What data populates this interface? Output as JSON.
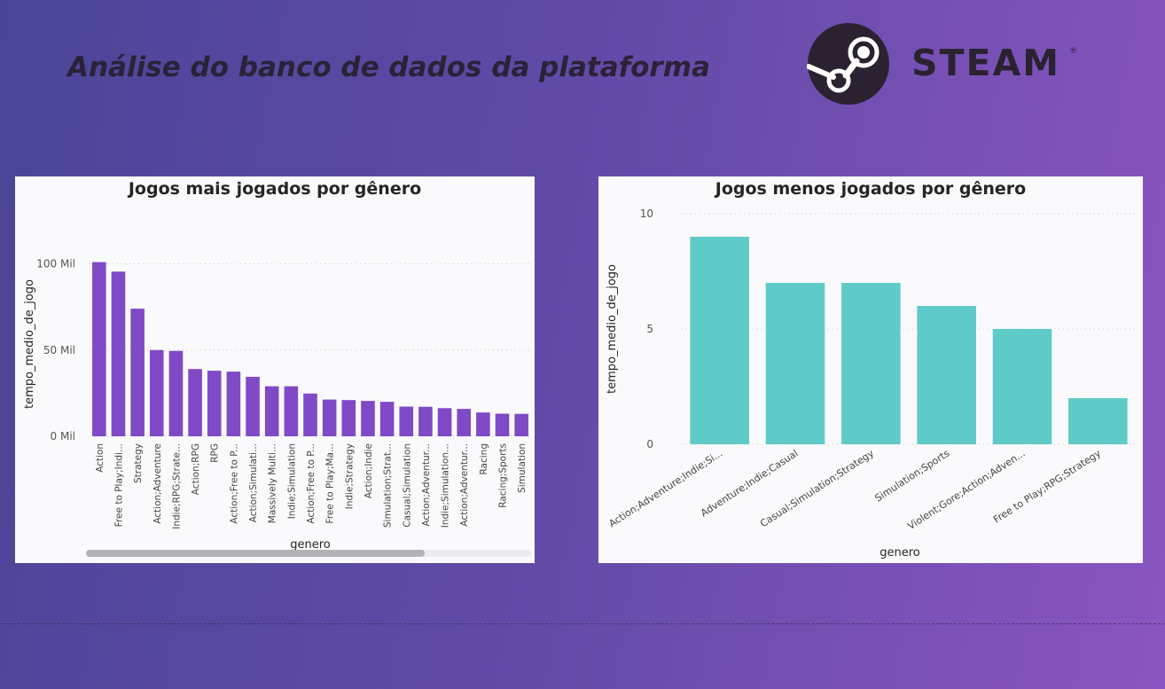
{
  "header": {
    "title": "Análise do banco de dados da plataforma",
    "logo_text": "STEAM",
    "logo_reg": "®",
    "logo_icon": "steam-logo-icon"
  },
  "colors": {
    "left_bar": "#8049c6",
    "right_bar": "#5ecbc8",
    "panel_bg": "#faf9fc",
    "text": "#252525",
    "grid": "#c8c8c8"
  },
  "chart_data": [
    {
      "type": "bar",
      "title": "Jogos mais jogados por gênero",
      "xlabel": "genero",
      "ylabel": "tempo_medio_de_jogo",
      "ylim": [
        0,
        108000
      ],
      "yticks": [
        {
          "value": 0,
          "label": "0 Mil"
        },
        {
          "value": 50000,
          "label": "50 Mil"
        },
        {
          "value": 100000,
          "label": "100 Mil"
        }
      ],
      "grid": true,
      "categories": [
        "Action",
        "Free to Play;Indi...",
        "Strategy",
        "Action;Adventure",
        "Indie;RPG;Strate...",
        "Action;RPG",
        "RPG",
        "Action;Free to P...",
        "Action;Simulati...",
        "Massively Multi...",
        "Indie;Simulation",
        "Action;Free to P...",
        "Free to Play;Ma...",
        "Indie;Strategy",
        "Action;Indie",
        "Simulation;Strat...",
        "Casual;Simulation",
        "Action;Adventur...",
        "Indie;Simulation...",
        "Action;Adventur...",
        "Racing",
        "Racing;Sports",
        "Simulation"
      ],
      "values": [
        101000,
        95500,
        74000,
        50000,
        49500,
        39000,
        38000,
        37500,
        34500,
        29000,
        29000,
        24800,
        21300,
        21000,
        20500,
        20000,
        17200,
        17100,
        16300,
        15900,
        13800,
        13100,
        13000
      ],
      "scrollbar": true
    },
    {
      "type": "bar",
      "title": "Jogos menos jogados por gênero",
      "xlabel": "genero",
      "ylabel": "tempo_medio_de_jogo",
      "ylim": [
        0,
        10
      ],
      "yticks": [
        {
          "value": 0,
          "label": "0"
        },
        {
          "value": 5,
          "label": "5"
        },
        {
          "value": 10,
          "label": "10"
        }
      ],
      "grid": true,
      "categories": [
        "Action;Adventure;Indie;Si...",
        "Adventure;Indie;Casual",
        "Casual;Simulation;Strategy",
        "Simulation;Sports",
        "Violent;Gore;Action;Adven...",
        "Free to Play;RPG;Strategy"
      ],
      "values": [
        9,
        7,
        7,
        6,
        5,
        2
      ]
    }
  ]
}
